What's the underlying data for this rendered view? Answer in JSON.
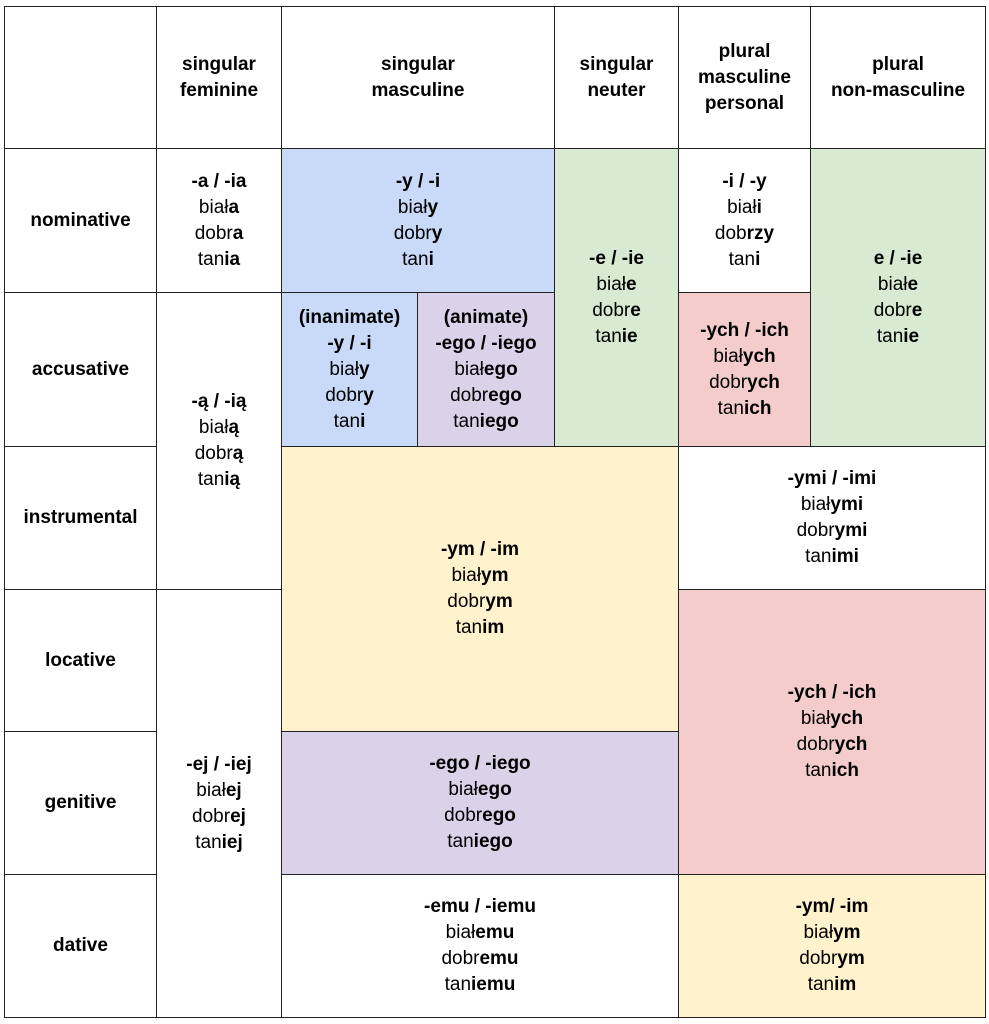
{
  "headers": {
    "corner": "",
    "sing_fem": [
      "singular",
      "feminine"
    ],
    "sing_masc": [
      "singular",
      "masculine"
    ],
    "sing_neut": [
      "singular",
      "neuter"
    ],
    "pl_masc_pers": [
      "plural",
      "masculine",
      "personal"
    ],
    "pl_non_masc": [
      "plural",
      "non-masculine"
    ]
  },
  "cases": {
    "nominative": "nominative",
    "accusative": "accusative",
    "instrumental": "instrumental",
    "locative": "locative",
    "genitive": "genitive",
    "dative": "dative"
  },
  "cells": {
    "fem_nom": {
      "ending": "-a / -ia",
      "words": [
        [
          "biał",
          "a"
        ],
        [
          "dobr",
          "a"
        ],
        [
          "tan",
          "ia"
        ]
      ]
    },
    "fem_acc_ins": {
      "ending": "-ą / -ią",
      "words": [
        [
          "biał",
          "ą"
        ],
        [
          "dobr",
          "ą"
        ],
        [
          "tan",
          "ią"
        ]
      ]
    },
    "fem_loc_gen_dat": {
      "ending": "-ej / -iej",
      "words": [
        [
          "biał",
          "ej"
        ],
        [
          "dobr",
          "ej"
        ],
        [
          "tan",
          "iej"
        ]
      ]
    },
    "masc_nom": {
      "ending": "-y / -i",
      "words": [
        [
          "biał",
          "y"
        ],
        [
          "dobr",
          "y"
        ],
        [
          "tan",
          "i"
        ]
      ]
    },
    "masc_acc_inan": {
      "note": "(inanimate)",
      "ending": "-y / -i",
      "words": [
        [
          "biał",
          "y"
        ],
        [
          "dobr",
          "y"
        ],
        [
          "tan",
          "i"
        ]
      ]
    },
    "masc_acc_anim": {
      "note": "(animate)",
      "ending": "-ego / -iego",
      "words": [
        [
          "biał",
          "ego"
        ],
        [
          "dobr",
          "ego"
        ],
        [
          "tan",
          "iego"
        ]
      ]
    },
    "neut_nom_acc": {
      "ending": "-e / -ie",
      "words": [
        [
          "biał",
          "e"
        ],
        [
          "dobr",
          "e"
        ],
        [
          "tan",
          "ie"
        ]
      ]
    },
    "masc_neut_ins_loc": {
      "ending": "-ym / -im",
      "words": [
        [
          "biał",
          "ym"
        ],
        [
          "dobr",
          "ym"
        ],
        [
          "tan",
          "im"
        ]
      ]
    },
    "masc_neut_gen": {
      "ending": "-ego / -iego",
      "words": [
        [
          "biał",
          "ego"
        ],
        [
          "dobr",
          "ego"
        ],
        [
          "tan",
          "iego"
        ]
      ]
    },
    "masc_neut_dat": {
      "ending": "-emu / -iemu",
      "words": [
        [
          "biał",
          "emu"
        ],
        [
          "dobr",
          "emu"
        ],
        [
          "tan",
          "iemu"
        ]
      ]
    },
    "plmp_nom": {
      "ending": "-i / -y",
      "words": [
        [
          "biał",
          "i"
        ],
        [
          "dob",
          "rzy"
        ],
        [
          "tan",
          "i"
        ]
      ]
    },
    "plmp_acc": {
      "ending": "-ych / -ich",
      "words": [
        [
          "biał",
          "ych"
        ],
        [
          "dobr",
          "ych"
        ],
        [
          "tan",
          "ich"
        ]
      ]
    },
    "pln_nom_acc": {
      "ending": "e / -ie",
      "words": [
        [
          "biał",
          "e"
        ],
        [
          "dobr",
          "e"
        ],
        [
          "tan",
          "ie"
        ]
      ]
    },
    "pl_ins": {
      "ending": "-ymi / -imi",
      "words": [
        [
          "biał",
          "ymi"
        ],
        [
          "dobr",
          "ymi"
        ],
        [
          "tan",
          "imi"
        ]
      ]
    },
    "pl_loc_gen": {
      "ending": "-ych / -ich",
      "words": [
        [
          "biał",
          "ych"
        ],
        [
          "dobr",
          "ych"
        ],
        [
          "tan",
          "ich"
        ]
      ]
    },
    "pl_dat": {
      "ending": "-ym/ -im",
      "words": [
        [
          "biał",
          "ym"
        ],
        [
          "dobr",
          "ym"
        ],
        [
          "tan",
          "im"
        ]
      ]
    }
  },
  "colors": {
    "blue": "#c9daf8",
    "purple": "#d9d2e9",
    "green": "#d9ead3",
    "pink": "#f4cccc",
    "yellow": "#fff2cc",
    "border": "#222222"
  }
}
